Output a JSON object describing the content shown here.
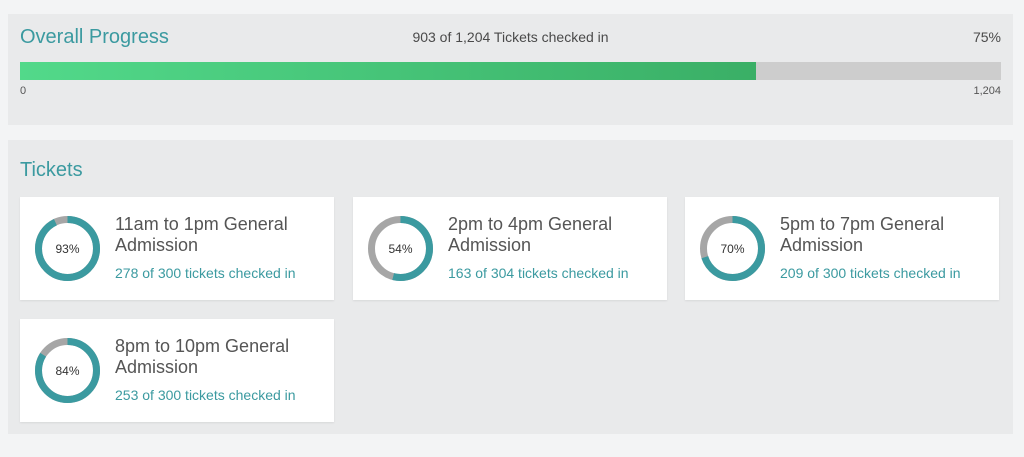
{
  "overall": {
    "title": "Overall Progress",
    "summary": "903 of 1,204 Tickets checked in",
    "percent_label": "75%",
    "progress_fraction": 0.75,
    "min_label": "0",
    "max_label": "1,204"
  },
  "tickets": {
    "title": "Tickets",
    "items": [
      {
        "name": "11am to 1pm General Admission",
        "checked_in": "278 of 300 tickets checked in",
        "percent_label": "93%",
        "fraction": 0.93
      },
      {
        "name": "2pm to 4pm General Admission",
        "checked_in": "163 of 304 tickets checked in",
        "percent_label": "54%",
        "fraction": 0.54
      },
      {
        "name": "5pm to 7pm General Admission",
        "checked_in": "209 of 300 tickets checked in",
        "percent_label": "70%",
        "fraction": 0.7
      },
      {
        "name": "8pm to 10pm General Admission",
        "checked_in": "253 of 300 tickets checked in",
        "percent_label": "84%",
        "fraction": 0.84
      }
    ]
  },
  "colors": {
    "accent": "#3b9aa0",
    "progress_start": "#52d98a",
    "progress_end": "#3aaf66",
    "track": "#cdcdcd",
    "donut_remaining": "#a6a6a6"
  }
}
